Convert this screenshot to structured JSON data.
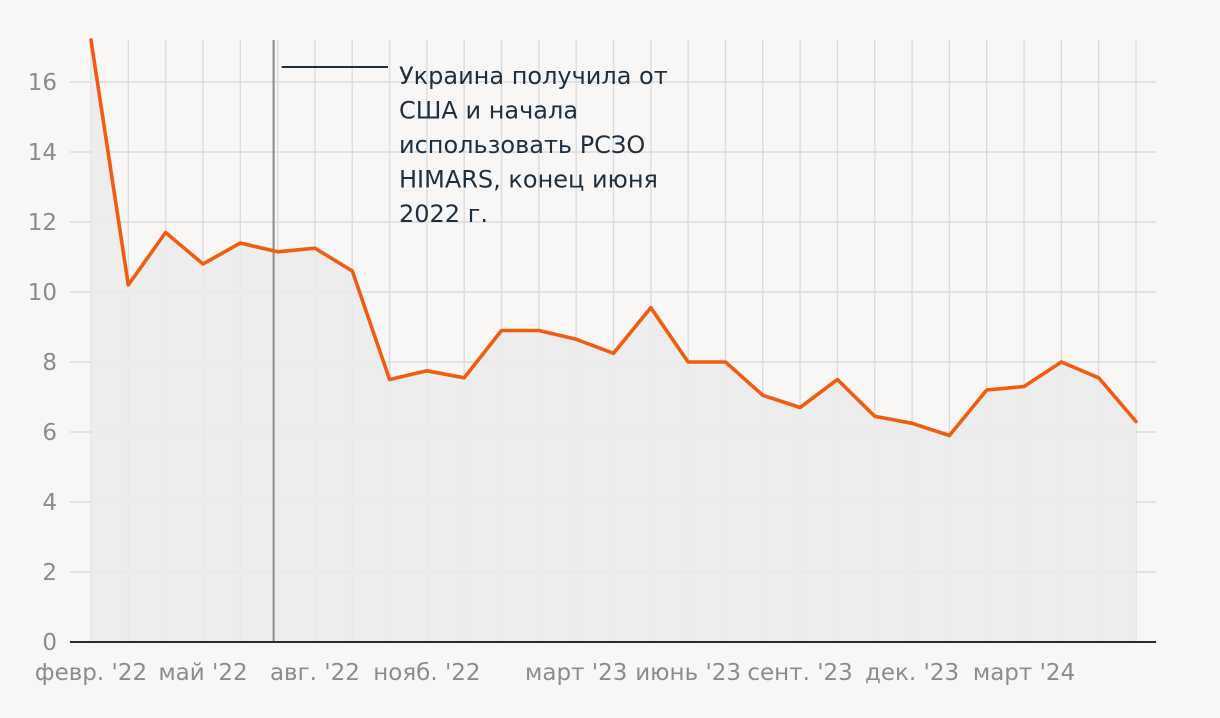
{
  "chart_data": {
    "type": "area",
    "title": "",
    "xlabel": "",
    "ylabel": "",
    "ylim": [
      0,
      17.2
    ],
    "yticks": [
      0,
      2,
      4,
      6,
      8,
      10,
      12,
      14,
      16
    ],
    "grid": true,
    "colors": {
      "line": "#f25c12",
      "area": "#ebebeb",
      "marker": "#8a8a8a",
      "annotation_line": "#1e3040",
      "background": "#f8f7f6"
    },
    "x": [
      "2022-02",
      "2022-03",
      "2022-04",
      "2022-05",
      "2022-06",
      "2022-07",
      "2022-08",
      "2022-09",
      "2022-10",
      "2022-11",
      "2022-12",
      "2023-01",
      "2023-02",
      "2023-03",
      "2023-04",
      "2023-05",
      "2023-06",
      "2023-07",
      "2023-08",
      "2023-09",
      "2023-10",
      "2023-11",
      "2023-12",
      "2024-01",
      "2024-02",
      "2024-03",
      "2024-04",
      "2024-05",
      "2024-06"
    ],
    "series": [
      {
        "name": "",
        "values": [
          17.2,
          10.2,
          11.7,
          10.8,
          11.4,
          11.15,
          11.25,
          10.6,
          7.5,
          7.75,
          7.55,
          8.9,
          8.9,
          8.65,
          8.25,
          9.55,
          8.0,
          8.0,
          7.05,
          6.7,
          7.5,
          6.45,
          6.25,
          5.9,
          7.2,
          7.3,
          8.0,
          7.55,
          6.3
        ]
      }
    ],
    "x_tick_labels": [
      {
        "x": "2022-02",
        "label": "февр. '22"
      },
      {
        "x": "2022-05",
        "label": "май '22"
      },
      {
        "x": "2022-08",
        "label": "авг. '22"
      },
      {
        "x": "2022-11",
        "label": "нояб. '22"
      },
      {
        "x": "2023-03",
        "label": "март '23"
      },
      {
        "x": "2023-06",
        "label": "июнь '23"
      },
      {
        "x": "2023-09",
        "label": "сент. '23"
      },
      {
        "x": "2023-12",
        "label": "дек. '23"
      },
      {
        "x": "2024-03",
        "label": "март '24"
      }
    ],
    "annotations": [
      {
        "x": "2022-07",
        "lines": [
          "Украина получила от",
          "США и начала",
          "использовать РСЗО",
          "HIMARS, конец июня",
          "2022 г."
        ]
      }
    ]
  }
}
